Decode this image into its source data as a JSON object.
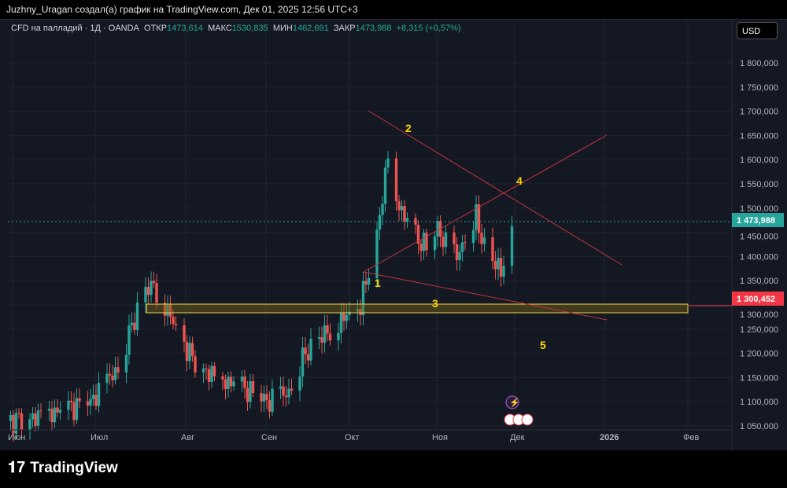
{
  "header": {
    "title": "Juzhny_Uragan создал(а) график на TradingView.com, Дек 01, 2025 12:56 UTC+3"
  },
  "legend": {
    "symbol": "CFD на палладий · 1Д · OANDA",
    "open_label": "ОТКР",
    "open": "1473,614",
    "high_label": "МАКС",
    "high": "1530,835",
    "low_label": "МИН",
    "low": "1462,691",
    "close_label": "ЗАКР",
    "close": "1473,988",
    "change": "+8,315 (+0,57%)"
  },
  "currency_button": "USD",
  "price_axis": {
    "ticks": [
      "1 800,000",
      "1 750,000",
      "1 700,000",
      "1 650,000",
      "1 600,000",
      "1 550,000",
      "1 500,000",
      "1 450,000",
      "1 400,000",
      "1 350,000",
      "1 300,000",
      "1 250,000",
      "1 200,000",
      "1 150,000",
      "1 100,000",
      "1 050,000"
    ],
    "last_price": "1 473,988",
    "level_price": "1 300,452"
  },
  "time_axis": {
    "ticks": [
      "Июн",
      "Июл",
      "Авг",
      "Сен",
      "Окт",
      "Ноя",
      "Дек",
      "2026",
      "Фев"
    ]
  },
  "annotations": [
    "1",
    "2",
    "3",
    "4",
    "5"
  ],
  "colors": {
    "up": "#26a69a",
    "down": "#ef5350",
    "last": "#26a69a",
    "level": "#f23645",
    "zone": "#ffeb3b"
  },
  "chart_data": {
    "type": "candlestick",
    "anchors": [
      [
        0,
        1060
      ],
      [
        12,
        1070
      ],
      [
        30,
        1100
      ],
      [
        40,
        1170
      ],
      [
        47,
        1290
      ],
      [
        50,
        1330
      ],
      [
        53,
        1340
      ],
      [
        57,
        1300
      ],
      [
        62,
        1240
      ],
      [
        68,
        1180
      ],
      [
        75,
        1150
      ],
      [
        85,
        1130
      ],
      [
        95,
        1100
      ],
      [
        102,
        1120
      ],
      [
        108,
        1200
      ],
      [
        115,
        1240
      ],
      [
        120,
        1260
      ],
      [
        125,
        1290
      ],
      [
        128,
        1300
      ],
      [
        131,
        1370
      ],
      [
        134,
        1450
      ],
      [
        137,
        1560
      ],
      [
        139,
        1660
      ],
      [
        141,
        1520
      ],
      [
        144,
        1480
      ],
      [
        148,
        1440
      ],
      [
        152,
        1420
      ],
      [
        156,
        1460
      ],
      [
        160,
        1410
      ],
      [
        163,
        1400
      ],
      [
        167,
        1450
      ],
      [
        170,
        1480
      ],
      [
        173,
        1420
      ],
      [
        176,
        1390
      ],
      [
        179,
        1370
      ],
      [
        181,
        1420
      ],
      [
        183,
        1474
      ]
    ]
  }
}
